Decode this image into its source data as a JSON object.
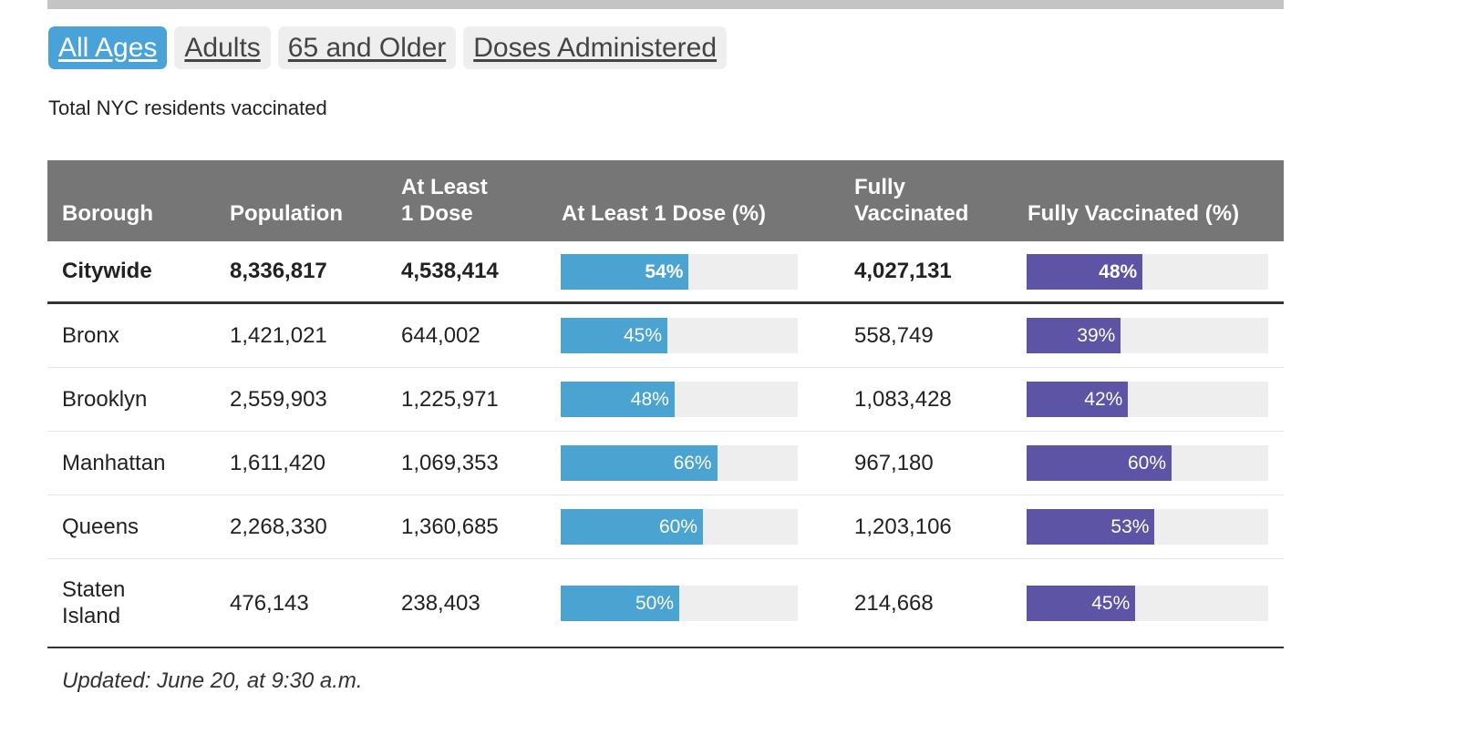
{
  "tabs": [
    {
      "label": "All Ages",
      "active": true
    },
    {
      "label": "Adults",
      "active": false
    },
    {
      "label": "65 and Older",
      "active": false
    },
    {
      "label": "Doses Administered",
      "active": false
    }
  ],
  "subtitle": "Total NYC residents vaccinated",
  "table": {
    "headers": {
      "borough": "Borough",
      "population": "Population",
      "dose1_line1": "At Least",
      "dose1_line2": "1 Dose",
      "dose1_pct": "At Least 1 Dose (%)",
      "full_line1": "Fully",
      "full_line2": "Vaccinated",
      "full_pct": "Fully Vaccinated (%)"
    },
    "citywide": {
      "borough": "Citywide",
      "population": "8,336,817",
      "dose1": "4,538,414",
      "dose1_pct": "54%",
      "dose1_pct_value": 54,
      "full": "4,027,131",
      "full_pct": "48%",
      "full_pct_value": 48
    },
    "rows": [
      {
        "borough": "Bronx",
        "population": "1,421,021",
        "dose1": "644,002",
        "dose1_pct": "45%",
        "dose1_pct_value": 45,
        "full": "558,749",
        "full_pct": "39%",
        "full_pct_value": 39
      },
      {
        "borough": "Brooklyn",
        "population": "2,559,903",
        "dose1": "1,225,971",
        "dose1_pct": "48%",
        "dose1_pct_value": 48,
        "full": "1,083,428",
        "full_pct": "42%",
        "full_pct_value": 42
      },
      {
        "borough": "Manhattan",
        "population": "1,611,420",
        "dose1": "1,069,353",
        "dose1_pct": "66%",
        "dose1_pct_value": 66,
        "full": "967,180",
        "full_pct": "60%",
        "full_pct_value": 60
      },
      {
        "borough": "Queens",
        "population": "2,268,330",
        "dose1": "1,360,685",
        "dose1_pct": "60%",
        "dose1_pct_value": 60,
        "full": "1,203,106",
        "full_pct": "53%",
        "full_pct_value": 53
      },
      {
        "borough_line1": "Staten",
        "borough_line2": "Island",
        "population": "476,143",
        "dose1": "238,403",
        "dose1_pct": "50%",
        "dose1_pct_value": 50,
        "full": "214,668",
        "full_pct": "45%",
        "full_pct_value": 45
      }
    ]
  },
  "updated": "Updated: June 20, at 9:30 a.m.",
  "colors": {
    "tab_active": "#4aa3d8",
    "header_bg": "#767676",
    "dose_bar": "#4aa3d0",
    "full_bar": "#5d54a6",
    "bar_track": "#eeeeee"
  }
}
